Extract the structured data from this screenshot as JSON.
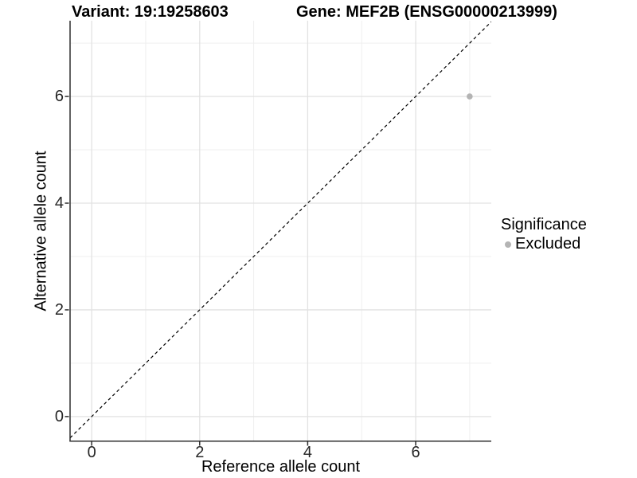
{
  "chart_data": {
    "type": "scatter",
    "title_left": "Variant: 19:19258603",
    "title_right": "Gene: MEF2B (ENSG00000213999)",
    "xlabel": "Reference allele count",
    "ylabel": "Alternative allele count",
    "xlim": [
      -0.4,
      7.4
    ],
    "ylim": [
      -0.45,
      7.42
    ],
    "x_ticks": [
      0,
      2,
      4,
      6
    ],
    "y_ticks": [
      0,
      2,
      4,
      6
    ],
    "x_minor_ticks": [
      1,
      3,
      5,
      7
    ],
    "y_minor_ticks": [
      1,
      3,
      5,
      7
    ],
    "grid": "major+minor",
    "reference_line": {
      "slope": 1,
      "intercept": 0,
      "style": "dashed",
      "color": "#000000"
    },
    "series": [
      {
        "name": "Excluded",
        "color": "#b4b4b4",
        "points": [
          [
            7,
            6
          ]
        ]
      }
    ],
    "legend": {
      "title": "Significance",
      "position": "right",
      "entries": [
        {
          "label": "Excluded",
          "color": "#b4b4b4"
        }
      ]
    }
  }
}
